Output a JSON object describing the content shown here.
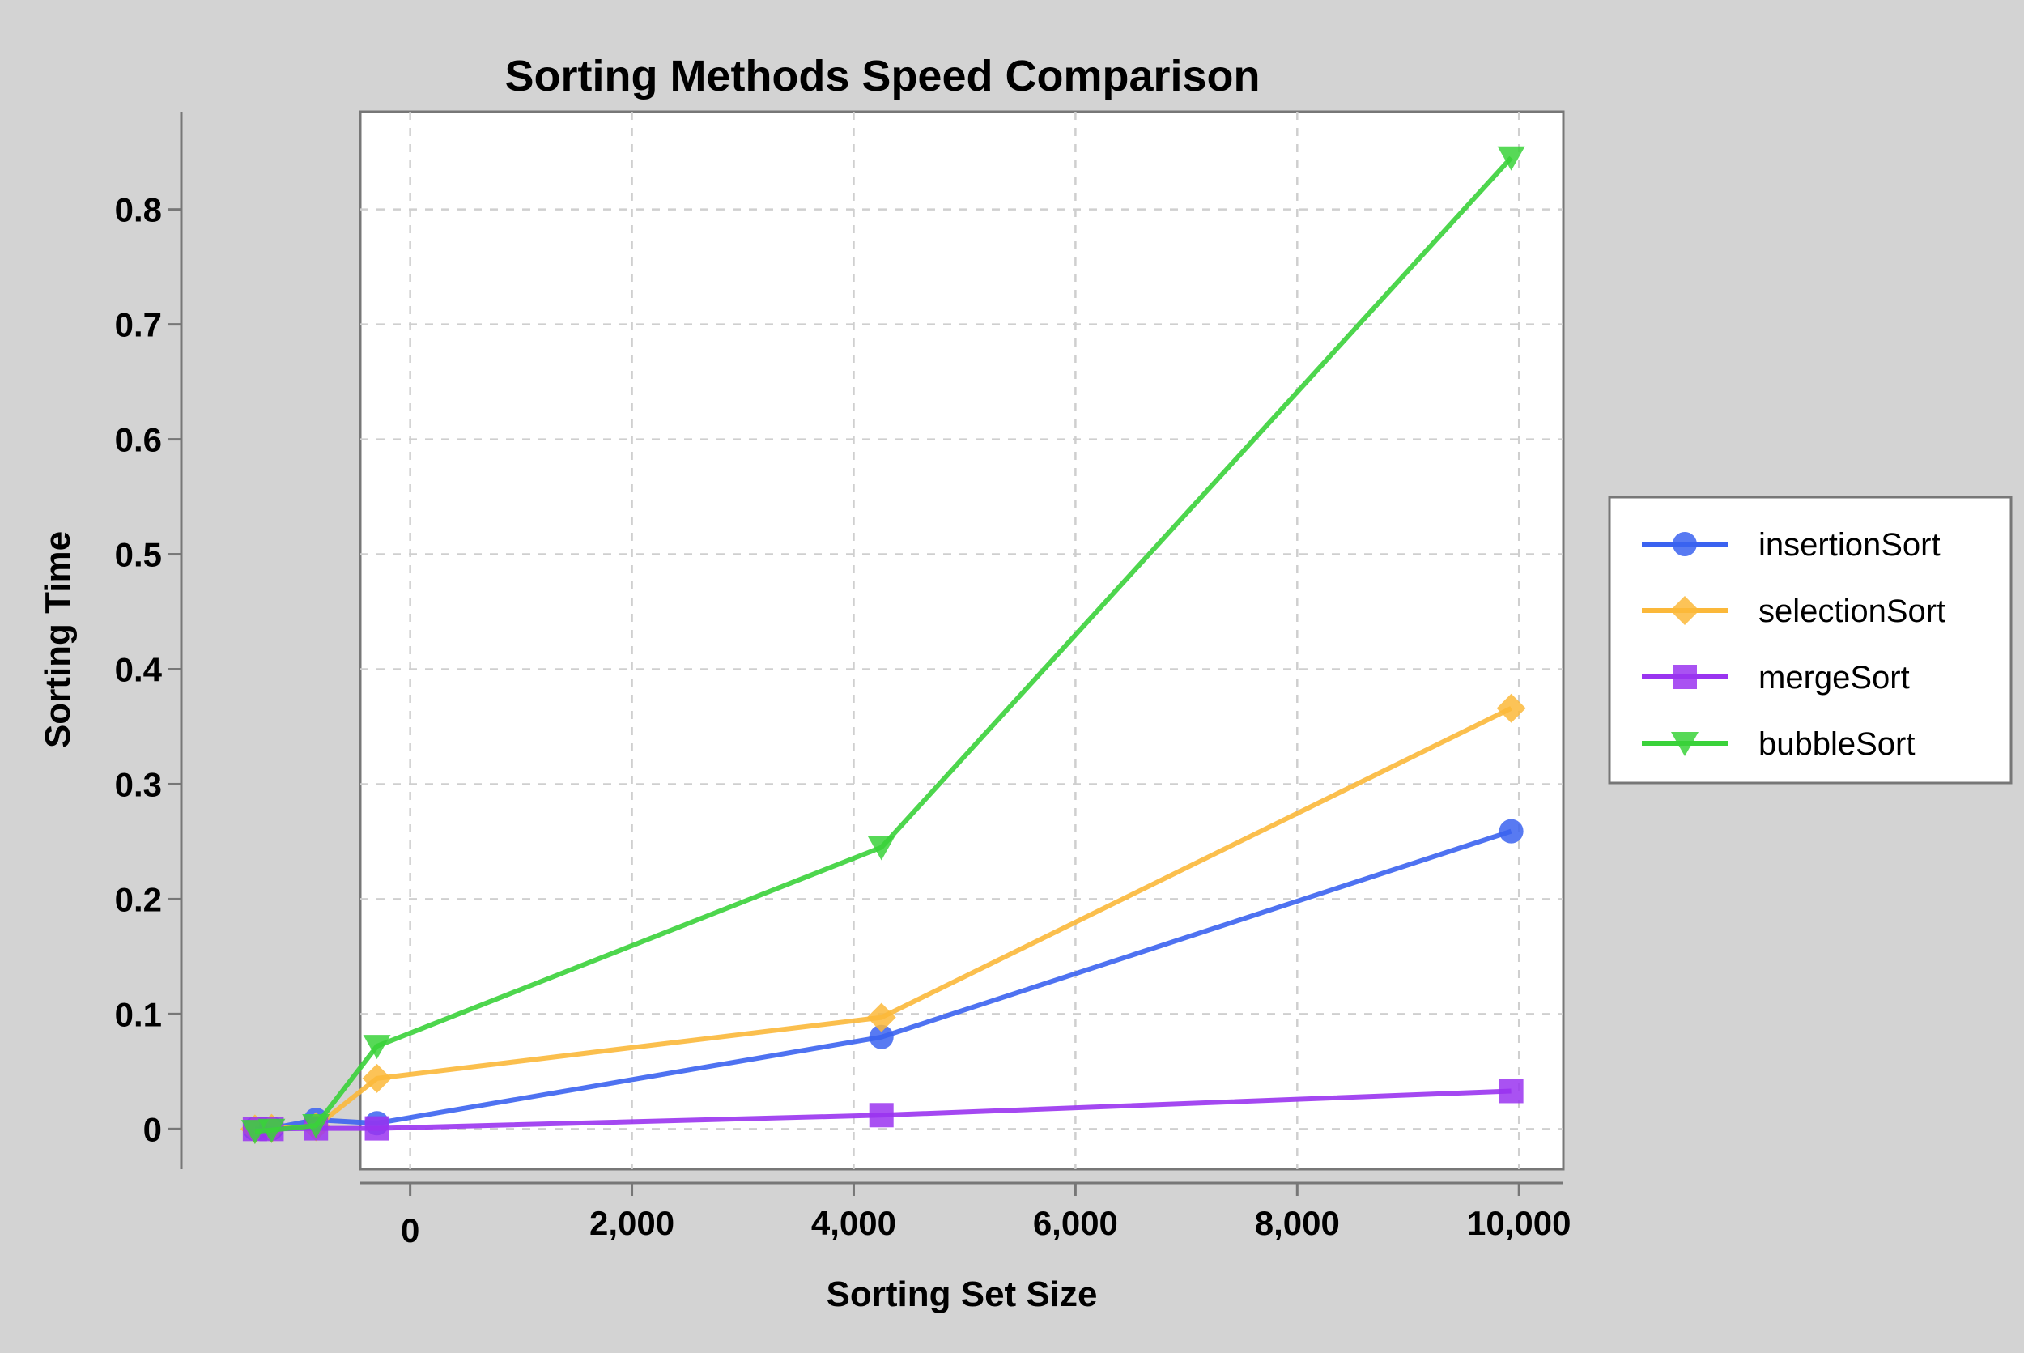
{
  "chart_data": {
    "type": "line",
    "title": "Sorting Methods Speed Comparison",
    "xlabel": "Sorting Set Size",
    "ylabel": "Sorting Time",
    "xlim": [
      -450,
      10400
    ],
    "ylim": [
      -0.035,
      0.885
    ],
    "x_ticks": [
      0,
      2000,
      4000,
      6000,
      8000,
      10000
    ],
    "x_tick_labels": [
      "0",
      "2,000",
      "4,000",
      "6,000",
      "8,000",
      "10,000"
    ],
    "y_ticks": [
      0,
      0.1,
      0.2,
      0.3,
      0.4,
      0.5,
      0.6,
      0.7,
      0.8
    ],
    "y_tick_labels": [
      "0",
      "0.1",
      "0.2",
      "0.3",
      "0.4",
      "0.5",
      "0.6",
      "0.7",
      "0.8"
    ],
    "grid": true,
    "legend_position": "right",
    "x": [
      -1400,
      -1250,
      -850,
      -300,
      4250,
      9930
    ],
    "series": [
      {
        "name": "insertionSort",
        "color": "#3b63f0",
        "marker": "circle",
        "values": [
          0.0,
          0.0005,
          0.008,
          0.005,
          0.08,
          0.259
        ]
      },
      {
        "name": "selectionSort",
        "color": "#fbb83a",
        "marker": "diamond",
        "values": [
          0.0,
          0.0005,
          0.002,
          0.044,
          0.097,
          0.366
        ]
      },
      {
        "name": "mergeSort",
        "color": "#9a34f0",
        "marker": "square",
        "values": [
          0.0,
          0.0,
          0.0005,
          0.0005,
          0.012,
          0.033
        ]
      },
      {
        "name": "bubbleSort",
        "color": "#3ad23a",
        "marker": "triangle-down",
        "values": [
          -0.002,
          -0.001,
          0.003,
          0.072,
          0.245,
          0.845
        ]
      }
    ]
  }
}
